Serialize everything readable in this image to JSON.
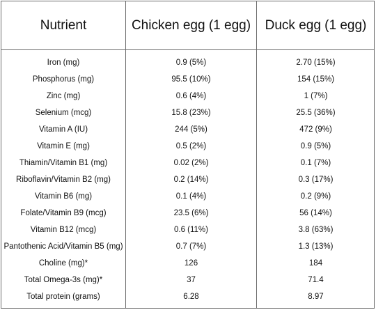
{
  "table": {
    "headers": [
      "Nutrient",
      "Chicken egg (1 egg)",
      "Duck egg (1 egg)"
    ],
    "rows": [
      [
        "Iron (mg)",
        "0.9 (5%)",
        "2.70 (15%)"
      ],
      [
        "Phosphorus (mg)",
        "95.5 (10%)",
        "154 (15%)"
      ],
      [
        "Zinc (mg)",
        "0.6 (4%)",
        "1 (7%)"
      ],
      [
        "Selenium (mcg)",
        "15.8 (23%)",
        "25.5 (36%)"
      ],
      [
        "Vitamin A (IU)",
        "244 (5%)",
        "472 (9%)"
      ],
      [
        "Vitamin E (mg)",
        "0.5 (2%)",
        "0.9 (5%)"
      ],
      [
        "Thiamin/Vitamin B1 (mg)",
        "0.02 (2%)",
        "0.1 (7%)"
      ],
      [
        "Riboflavin/Vitamin B2 (mg)",
        "0.2 (14%)",
        "0.3 (17%)"
      ],
      [
        "Vitamin B6 (mg)",
        "0.1 (4%)",
        "0.2 (9%)"
      ],
      [
        "Folate/Vitamin B9 (mcg)",
        "23.5 (6%)",
        "56 (14%)"
      ],
      [
        "Vitamin B12 (mcg)",
        "0.6 (11%)",
        "3.8 (63%)"
      ],
      [
        "Pantothenic Acid/Vitamin B5 (mg)",
        "0.7 (7%)",
        "1.3 (13%)"
      ],
      [
        "Choline (mg)*",
        "126",
        "184"
      ],
      [
        "Total Omega-3s (mg)*",
        "37",
        "71.4"
      ],
      [
        "Total protein (grams)",
        "6.28",
        "8.97"
      ]
    ]
  }
}
